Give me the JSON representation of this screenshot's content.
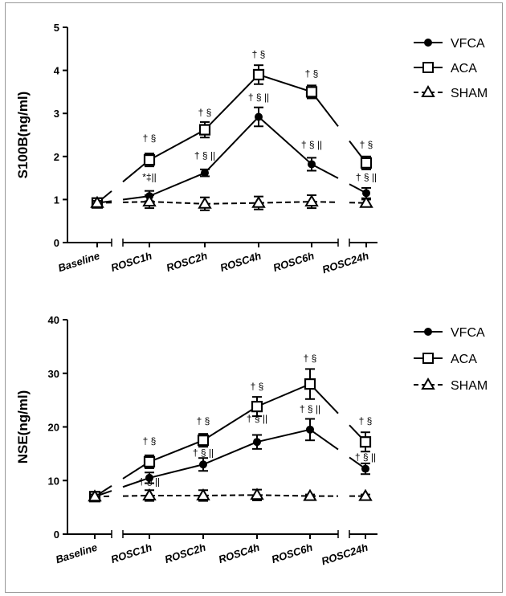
{
  "chart_data": [
    {
      "type": "line",
      "ylabel": "S100B(ng/ml)",
      "xlabel": "",
      "ylim": [
        0,
        5
      ],
      "yticks": [
        0,
        1,
        2,
        3,
        4,
        5
      ],
      "categories": [
        "Baseline",
        "ROSC1h",
        "ROSC2h",
        "ROSC4h",
        "ROSC6h",
        "ROSC24h"
      ],
      "series": [
        {
          "name": "VFCA",
          "marker": "circle",
          "line": "solid",
          "values": [
            0.92,
            1.08,
            1.62,
            2.92,
            1.82,
            1.15
          ],
          "errors": [
            0.05,
            0.12,
            0.08,
            0.22,
            0.15,
            0.12
          ]
        },
        {
          "name": "ACA",
          "marker": "square",
          "line": "solid",
          "values": [
            0.92,
            1.92,
            2.62,
            3.9,
            3.5,
            1.85
          ],
          "errors": [
            0.05,
            0.15,
            0.18,
            0.22,
            0.15,
            0.15
          ]
        },
        {
          "name": "SHAM",
          "marker": "triangle",
          "line": "dashed",
          "values": [
            0.92,
            0.95,
            0.9,
            0.92,
            0.95,
            0.92
          ],
          "errors": [
            0.05,
            0.15,
            0.15,
            0.15,
            0.15,
            0.08
          ]
        }
      ],
      "annotations": [
        {
          "text": "† §",
          "x": "ROSC1h",
          "y": 2.35
        },
        {
          "text": "*‡||",
          "x": "ROSC1h",
          "y": 1.45
        },
        {
          "text": "† §",
          "x": "ROSC2h",
          "y": 2.95
        },
        {
          "text": "† § ||",
          "x": "ROSC2h",
          "y": 1.95
        },
        {
          "text": "† §",
          "x": "ROSC4h",
          "y": 4.3
        },
        {
          "text": "† § ||",
          "x": "ROSC4h",
          "y": 3.3
        },
        {
          "text": "† §",
          "x": "ROSC6h",
          "y": 3.85
        },
        {
          "text": "† § ||",
          "x": "ROSC6h",
          "y": 2.2
        },
        {
          "text": "† §",
          "x": "ROSC24h",
          "y": 2.2
        },
        {
          "text": "† § ||",
          "x": "ROSC24h",
          "y": 1.45
        }
      ]
    },
    {
      "type": "line",
      "ylabel": "NSE(ng/ml)",
      "xlabel": "",
      "ylim": [
        0,
        40
      ],
      "yticks": [
        0,
        10,
        20,
        30,
        40
      ],
      "categories": [
        "Baseline",
        "ROSC1h",
        "ROSC2h",
        "ROSC4h",
        "ROSC6h",
        "ROSC24h"
      ],
      "series": [
        {
          "name": "VFCA",
          "marker": "circle",
          "line": "solid",
          "values": [
            7.0,
            10.5,
            13.0,
            17.2,
            19.5,
            12.2
          ],
          "errors": [
            0.4,
            1.0,
            1.2,
            1.3,
            2.0,
            1.0
          ]
        },
        {
          "name": "ACA",
          "marker": "square",
          "line": "solid",
          "values": [
            7.0,
            13.5,
            17.5,
            23.8,
            28.0,
            17.2
          ],
          "errors": [
            0.4,
            1.2,
            1.2,
            1.8,
            2.8,
            1.8
          ]
        },
        {
          "name": "SHAM",
          "marker": "triangle",
          "line": "dashed",
          "values": [
            7.0,
            7.2,
            7.2,
            7.3,
            7.1,
            7.1
          ],
          "errors": [
            0.4,
            1.0,
            1.0,
            1.0,
            0.3,
            0.3
          ]
        }
      ],
      "annotations": [
        {
          "text": "† §",
          "x": "ROSC1h",
          "y": 16.8
        },
        {
          "text": "† § ||",
          "x": "ROSC1h",
          "y": 9.2
        },
        {
          "text": "† §",
          "x": "ROSC2h",
          "y": 20.5
        },
        {
          "text": "† § ||",
          "x": "ROSC2h",
          "y": 14.6
        },
        {
          "text": "† §",
          "x": "ROSC4h",
          "y": 27.0
        },
        {
          "text": "† § ||",
          "x": "ROSC4h",
          "y": 21.0
        },
        {
          "text": "† §",
          "x": "ROSC6h",
          "y": 32.2
        },
        {
          "text": "† § ||",
          "x": "ROSC6h",
          "y": 22.8
        },
        {
          "text": "† §",
          "x": "ROSC24h",
          "y": 20.5
        },
        {
          "text": "† § ||",
          "x": "ROSC24h",
          "y": 13.8
        }
      ]
    }
  ]
}
